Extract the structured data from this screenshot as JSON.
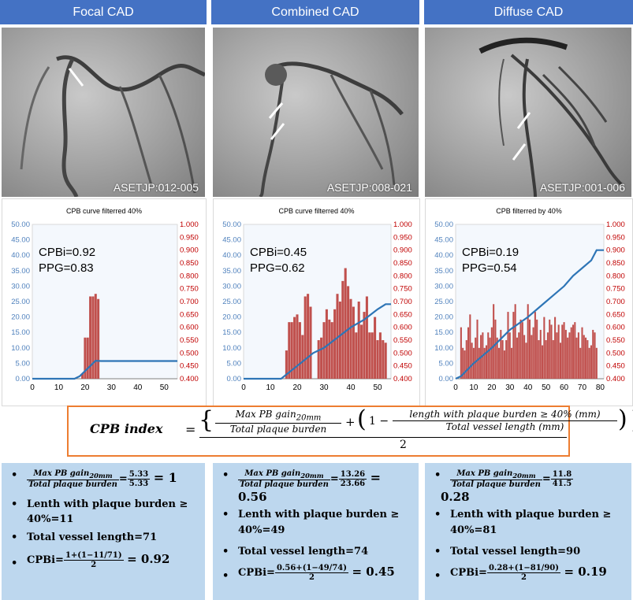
{
  "panels": [
    {
      "header": "Focal CAD",
      "angio_id": "ASETJP:012-005",
      "chart": {
        "title": "CPB curve filterred 40%",
        "cpbi": "CPBi=0.92",
        "ppg": "PPG=0.83",
        "xticks": [
          "0",
          "10",
          "20",
          "30",
          "40",
          "50"
        ],
        "xmax": 55
      },
      "calc": {
        "frac_num": "Max PB gain",
        "frac_num_sub": "20mm",
        "frac_den": "Total plaque burden",
        "frac_result_num": "5.33",
        "frac_result_den": "5.33",
        "frac_result": "= 1",
        "eq": "=",
        "length_label": "Lenth with plaque burden ≥",
        "length_value": "40%=11",
        "total_vessel": "Total vessel length=71",
        "cpbi_label": "CPBi=",
        "cpbi_num": "1+(1−11/71)",
        "cpbi_den": "2",
        "cpbi_result": "= 0.92"
      }
    },
    {
      "header": "Combined CAD",
      "angio_id": "ASETJP:008-021",
      "chart": {
        "title": "CPB curve filterred 40%",
        "cpbi": "CPBi=0.45",
        "ppg": "PPG=0.62",
        "xticks": [
          "0",
          "10",
          "20",
          "30",
          "40",
          "50"
        ],
        "xmax": 55
      },
      "calc": {
        "frac_num": "Max PB gain",
        "frac_num_sub": "20mm",
        "frac_den": "Total plaque burden",
        "frac_result_num": "13.26",
        "frac_result_den": "23.66",
        "frac_result": "=",
        "frac_result2": "0.56",
        "eq": "=",
        "length_label": "Lenth with plaque burden ≥",
        "length_value": "40%=49",
        "total_vessel": "Total vessel length=74",
        "cpbi_label": "CPBi=",
        "cpbi_num": "0.56+(1−49/74)",
        "cpbi_den": "2",
        "cpbi_result": "= 0.45"
      }
    },
    {
      "header": "Diffuse CAD",
      "angio_id": "ASETJP:001-006",
      "chart": {
        "title": "CPB filterred by 40%",
        "cpbi": "CPBi=0.19",
        "ppg": "PPG=0.54",
        "xticks": [
          "0",
          "10",
          "20",
          "30",
          "40",
          "50",
          "60",
          "70",
          "80"
        ],
        "xmax": 82
      },
      "calc": {
        "frac_num": "Max PB gain",
        "frac_num_sub": "20mm",
        "frac_den": "Total plaque burden",
        "frac_result_num": "11.8",
        "frac_result_den": "41.5",
        "frac_result": "",
        "frac_result2": "0.28",
        "eq": "=",
        "length_label": "Lenth with plaque burden ≥",
        "length_value": "40%=81",
        "total_vessel": "Total vessel length=90",
        "cpbi_label": "CPBi=",
        "cpbi_num": "0.28+(1−81/90)",
        "cpbi_den": "2",
        "cpbi_result": "= 0.19"
      }
    }
  ],
  "y_left_ticks": [
    "0.00",
    "5.00",
    "10.00",
    "15.00",
    "20.00",
    "25.00",
    "30.00",
    "35.00",
    "40.00",
    "45.00",
    "50.00"
  ],
  "y_right_ticks": [
    "0.400",
    "0.450",
    "0.500",
    "0.550",
    "0.600",
    "0.650",
    "0.700",
    "0.750",
    "0.800",
    "0.850",
    "0.900",
    "0.950",
    "1.000"
  ],
  "formula": {
    "label": "CPB index",
    "equals": "=",
    "term1_num": "Max PB gain",
    "term1_sub": "20mm",
    "term1_den": "Total plaque burden",
    "plus": "+",
    "term2_pre": "1 −",
    "term2_num": "length with plaque burden ≥ 40% (mm)",
    "term2_den": "Total vessel length (mm)",
    "denominator": "2"
  },
  "colors": {
    "header_bg": "#4472c4",
    "bar": "#c0504d",
    "line": "#2e75b6",
    "left_axis": "#4f81bd",
    "right_axis": "#c00000",
    "calc_bg": "#bdd7ee",
    "formula_border": "#ed7d31"
  },
  "chart_data": [
    {
      "type": "bar",
      "title": "CPB curve filterred 40%",
      "annotations": [
        "CPBi=0.92",
        "PPG=0.83"
      ],
      "x_range": [
        0,
        55
      ],
      "y_left_range": [
        0,
        50
      ],
      "y_right_range": [
        0.4,
        1.0
      ],
      "series": [
        {
          "kind": "bar",
          "axis": "right",
          "x": [
            19,
            20,
            21,
            22,
            23,
            24,
            25
          ],
          "values": [
            0.42,
            0.56,
            0.56,
            0.72,
            0.72,
            0.73,
            0.71
          ]
        },
        {
          "kind": "line",
          "axis": "right",
          "x": [
            0,
            16,
            18,
            20,
            22,
            24,
            26,
            55
          ],
          "values": [
            0.4,
            0.4,
            0.41,
            0.43,
            0.45,
            0.47,
            0.469,
            0.469
          ]
        }
      ]
    },
    {
      "type": "bar",
      "title": "CPB curve filterred 40%",
      "annotations": [
        "CPBi=0.45",
        "PPG=0.62"
      ],
      "x_range": [
        0,
        55
      ],
      "y_left_range": [
        0,
        50
      ],
      "y_right_range": [
        0.4,
        1.0
      ],
      "series": [
        {
          "kind": "bar",
          "axis": "right",
          "x": [
            16,
            17,
            18,
            19,
            20,
            21,
            22,
            23,
            24,
            25,
            28,
            29,
            30,
            31,
            32,
            33,
            34,
            35,
            36,
            37,
            38,
            39,
            40,
            41,
            42,
            43,
            44,
            45,
            46,
            47,
            48,
            49,
            50,
            51,
            52,
            53
          ],
          "values": [
            0.51,
            0.62,
            0.62,
            0.64,
            0.65,
            0.62,
            0.57,
            0.72,
            0.73,
            0.68,
            0.55,
            0.56,
            0.62,
            0.67,
            0.63,
            0.62,
            0.67,
            0.73,
            0.7,
            0.78,
            0.83,
            0.76,
            0.71,
            0.68,
            0.58,
            0.7,
            0.61,
            0.66,
            0.72,
            0.58,
            0.58,
            0.64,
            0.55,
            0.58,
            0.55,
            0.54
          ]
        },
        {
          "kind": "line",
          "axis": "right",
          "x": [
            0,
            14,
            20,
            26,
            30,
            35,
            40,
            45,
            50,
            53,
            55
          ],
          "values": [
            0.4,
            0.4,
            0.45,
            0.5,
            0.52,
            0.56,
            0.6,
            0.63,
            0.67,
            0.69,
            0.69
          ]
        }
      ]
    },
    {
      "type": "bar",
      "title": "CPB filterred by 40%",
      "annotations": [
        "CPBi=0.19",
        "PPG=0.54"
      ],
      "x_range": [
        0,
        82
      ],
      "y_left_range": [
        0,
        50
      ],
      "y_right_range": [
        0.4,
        1.0
      ],
      "series": [
        {
          "kind": "bar",
          "axis": "right",
          "x": [
            3,
            4,
            5,
            6,
            7,
            8,
            9,
            10,
            11,
            12,
            13,
            14,
            15,
            16,
            17,
            18,
            19,
            20,
            21,
            22,
            23,
            24,
            25,
            26,
            27,
            28,
            29,
            30,
            31,
            32,
            33,
            34,
            35,
            36,
            37,
            38,
            39,
            40,
            41,
            42,
            43,
            44,
            45,
            46,
            47,
            48,
            49,
            50,
            51,
            52,
            53,
            54,
            55,
            56,
            57,
            58,
            59,
            60,
            61,
            62,
            63,
            64,
            65,
            66,
            67,
            68,
            69,
            70,
            71,
            72,
            73,
            74,
            75,
            76,
            77,
            78
          ],
          "values": [
            0.6,
            0.52,
            0.51,
            0.55,
            0.6,
            0.65,
            0.54,
            0.52,
            0.56,
            0.63,
            0.52,
            0.57,
            0.58,
            0.52,
            0.53,
            0.58,
            0.56,
            0.6,
            0.69,
            0.63,
            0.56,
            0.52,
            0.59,
            0.55,
            0.51,
            0.55,
            0.66,
            0.58,
            0.52,
            0.66,
            0.69,
            0.56,
            0.58,
            0.63,
            0.62,
            0.57,
            0.54,
            0.69,
            0.63,
            0.57,
            0.6,
            0.66,
            0.63,
            0.55,
            0.59,
            0.53,
            0.64,
            0.55,
            0.58,
            0.63,
            0.61,
            0.55,
            0.64,
            0.58,
            0.61,
            0.54,
            0.61,
            0.62,
            0.59,
            0.56,
            0.58,
            0.6,
            0.61,
            0.62,
            0.56,
            0.58,
            0.52,
            0.6,
            0.57,
            0.56,
            0.55,
            0.52,
            0.53,
            0.59,
            0.58,
            0.52
          ]
        },
        {
          "kind": "line",
          "axis": "right",
          "x": [
            0,
            3,
            10,
            20,
            30,
            40,
            50,
            60,
            65,
            70,
            75,
            78,
            82
          ],
          "values": [
            0.4,
            0.41,
            0.46,
            0.52,
            0.59,
            0.64,
            0.7,
            0.76,
            0.8,
            0.83,
            0.86,
            0.9,
            0.9
          ]
        }
      ]
    }
  ]
}
